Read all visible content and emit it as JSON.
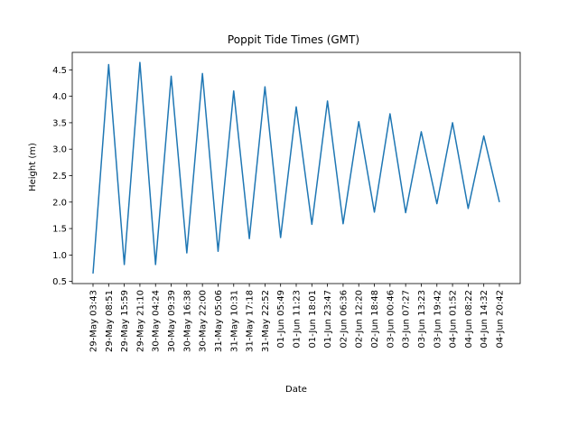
{
  "chart_data": {
    "type": "line",
    "title": "Poppit Tide Times (GMT)",
    "xlabel": "Date",
    "ylabel": "Height (m)",
    "ylim": [
      0.46,
      4.83
    ],
    "yticks": [
      0.5,
      1.0,
      1.5,
      2.0,
      2.5,
      3.0,
      3.5,
      4.0,
      4.5
    ],
    "ytick_labels": [
      "0.5",
      "1.0",
      "1.5",
      "2.0",
      "2.5",
      "3.0",
      "3.5",
      "4.0",
      "4.5"
    ],
    "grid": false,
    "line_color": "#1f77b4",
    "categories": [
      "29-May 03:43",
      "29-May 08:51",
      "29-May 15:59",
      "29-May 21:10",
      "30-May 04:24",
      "30-May 09:39",
      "30-May 16:38",
      "30-May 22:00",
      "31-May 05:06",
      "31-May 10:31",
      "31-May 17:18",
      "31-May 22:52",
      "01-Jun 05:49",
      "01-Jun 11:23",
      "01-Jun 18:01",
      "01-Jun 23:47",
      "02-Jun 06:36",
      "02-Jun 12:20",
      "02-Jun 18:48",
      "03-Jun 00:46",
      "03-Jun 07:27",
      "03-Jun 13:23",
      "03-Jun 19:42",
      "04-Jun 01:52",
      "04-Jun 08:22",
      "04-Jun 14:32",
      "04-Jun 20:42"
    ],
    "values": [
      0.65,
      4.6,
      0.82,
      4.64,
      0.82,
      4.38,
      1.04,
      4.43,
      1.07,
      4.1,
      1.31,
      4.18,
      1.33,
      3.8,
      1.58,
      3.91,
      1.59,
      3.52,
      1.81,
      3.67,
      1.8,
      3.33,
      1.97,
      3.5,
      1.88,
      3.25,
      2.0
    ]
  }
}
